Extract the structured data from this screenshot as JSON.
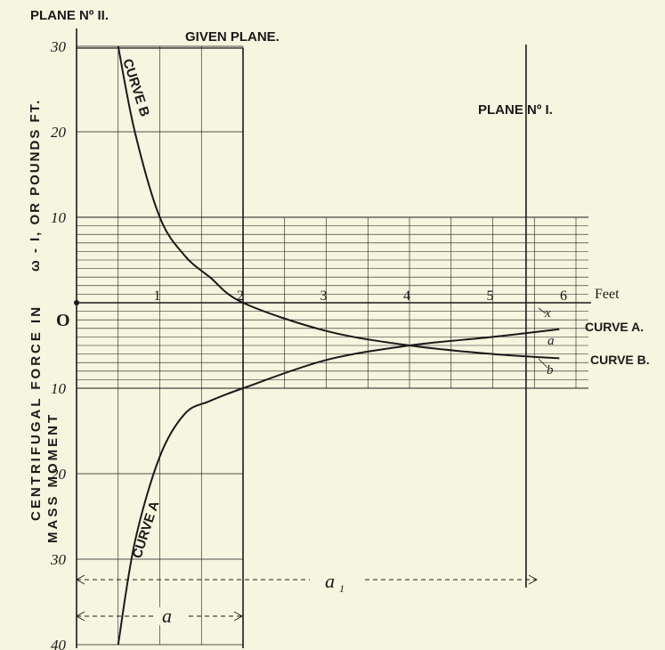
{
  "labels": {
    "plane_2": "PLANE Nº II.",
    "given_plane": "GIVEN PLANE.",
    "plane_1": "PLANE Nº I.",
    "curve_a_right": "CURVE A.",
    "curve_b_right": "CURVE B.",
    "curve_a_on": "CURVE A",
    "curve_b_on": "CURVE B",
    "origin": "O",
    "feet_unit": "Feet",
    "y_axis_1": "CENTRIFUGAL FORCE IN",
    "y_axis_2": "MASS MOMENT",
    "y_axis_3": "ω - I, OR POUNDS FT.",
    "dim_a": "a",
    "dim_a1": "a",
    "mark_x": "x",
    "mark_a": "a",
    "mark_b": "b"
  },
  "colors": {
    "background": "#f6f5df",
    "ink": "#1a1a1a"
  },
  "chart_data": {
    "type": "line",
    "x_ticks": [
      "1",
      "2",
      "3",
      "4",
      "5",
      "6"
    ],
    "y_ticks_up": [
      "10",
      "20",
      "30"
    ],
    "y_ticks_down": [
      "10",
      "20",
      "30",
      "40"
    ],
    "xlim": [
      0,
      6
    ],
    "ylim": [
      -40,
      30
    ],
    "given_plane_x": 2,
    "plane_1_x": 5.4,
    "plane_2_x": 0,
    "series": [
      {
        "name": "CURVE B",
        "x": [
          0.5,
          0.7,
          1.0,
          1.3,
          1.6,
          2.0,
          3.0,
          4.0,
          5.0,
          5.8
        ],
        "y": [
          30,
          20,
          10,
          5.5,
          3,
          0,
          -3.3,
          -5,
          -6,
          -6.5
        ]
      },
      {
        "name": "CURVE A",
        "x": [
          0.5,
          0.7,
          1.0,
          1.3,
          1.6,
          2.0,
          3.0,
          4.0,
          5.0,
          5.8
        ],
        "y": [
          -40,
          -28,
          -18,
          -13,
          -11.5,
          -10,
          -6.7,
          -5,
          -4,
          -3.1
        ]
      }
    ]
  }
}
